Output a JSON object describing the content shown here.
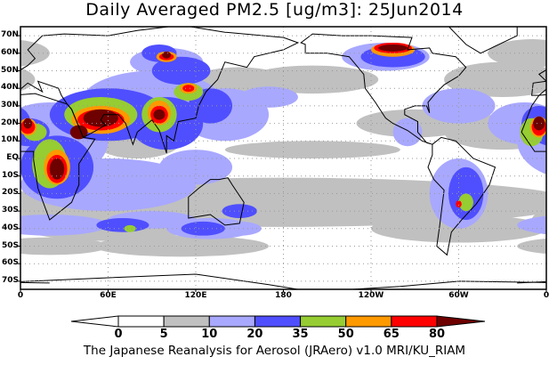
{
  "title": "Daily Averaged PM2.5 [ug/m3]: 25Jun2014",
  "lat_ticks": [
    "70N",
    "60N",
    "50N",
    "40N",
    "30N",
    "20N",
    "10N",
    "EQ",
    "10S",
    "20S",
    "30S",
    "40S",
    "50S",
    "60S",
    "70S"
  ],
  "lon_ticks": [
    "0",
    "60E",
    "120E",
    "180",
    "120W",
    "60W",
    "0"
  ],
  "colorbar": {
    "levels": [
      "0",
      "5",
      "10",
      "20",
      "35",
      "50",
      "65",
      "80"
    ],
    "colors": [
      "#ffffff",
      "#ffffff",
      "#c0c0c0",
      "#a8a8ff",
      "#4f4fff",
      "#96cd32",
      "#ff9900",
      "#ff0000",
      "#6e0000"
    ]
  },
  "credit": "The Japanese Reanalysis for Aerosol (JRAero) v1.0 MRI/KU_RIAM"
}
